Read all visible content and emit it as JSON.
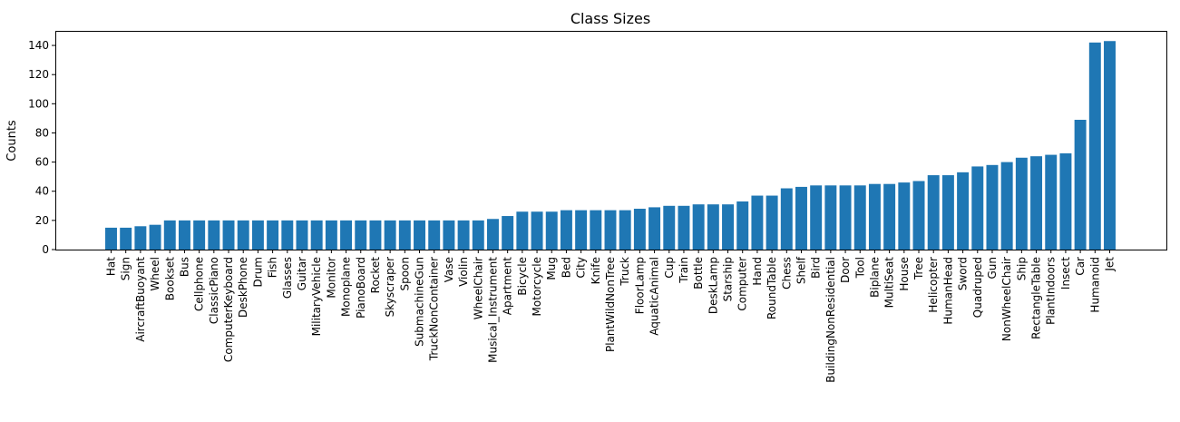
{
  "chart_data": {
    "type": "bar",
    "title": "Class Sizes",
    "xlabel": "",
    "ylabel": "Counts",
    "ylim": [
      0,
      150
    ],
    "yticks": [
      0,
      20,
      40,
      60,
      80,
      100,
      120,
      140
    ],
    "grid": false,
    "bar_color": "#1f77b4",
    "categories": [
      "Hat",
      "Sign",
      "AircraftBuoyant",
      "Wheel",
      "Bookset",
      "Bus",
      "Cellphone",
      "ClassicPiano",
      "ComputerKeyboard",
      "DeskPhone",
      "Drum",
      "Fish",
      "Glasses",
      "Guitar",
      "MilitaryVehicle",
      "Monitor",
      "Monoplane",
      "PianoBoard",
      "Rocket",
      "Skyscraper",
      "Spoon",
      "SubmachineGun",
      "TruckNonContainer",
      "Vase",
      "Violin",
      "WheelChair",
      "Musical_Instrument",
      "Apartment",
      "Bicycle",
      "Motorcycle",
      "Mug",
      "Bed",
      "City",
      "Knife",
      "PlantWildNonTree",
      "Truck",
      "FloorLamp",
      "AquaticAnimal",
      "Cup",
      "Train",
      "Bottle",
      "DeskLamp",
      "Starship",
      "Computer",
      "Hand",
      "RoundTable",
      "Chess",
      "Shelf",
      "Bird",
      "BuildingNonResidential",
      "Door",
      "Tool",
      "Biplane",
      "MultiSeat",
      "House",
      "Tree",
      "Helicopter",
      "HumanHead",
      "Sword",
      "Quadruped",
      "Gun",
      "NonWheelChair",
      "Ship",
      "RectangleTable",
      "PlantIndoors",
      "Insect",
      "Car",
      "Humanoid",
      "Jet"
    ],
    "values": [
      15,
      15,
      16,
      17,
      20,
      20,
      20,
      20,
      20,
      20,
      20,
      20,
      20,
      20,
      20,
      20,
      20,
      20,
      20,
      20,
      20,
      20,
      20,
      20,
      20,
      20,
      21,
      23,
      26,
      26,
      26,
      27,
      27,
      27,
      27,
      27,
      28,
      29,
      30,
      30,
      31,
      31,
      31,
      33,
      37,
      37,
      42,
      43,
      44,
      44,
      44,
      44,
      45,
      45,
      46,
      47,
      51,
      51,
      53,
      57,
      58,
      60,
      63,
      64,
      65,
      66,
      89,
      142,
      143
    ]
  }
}
